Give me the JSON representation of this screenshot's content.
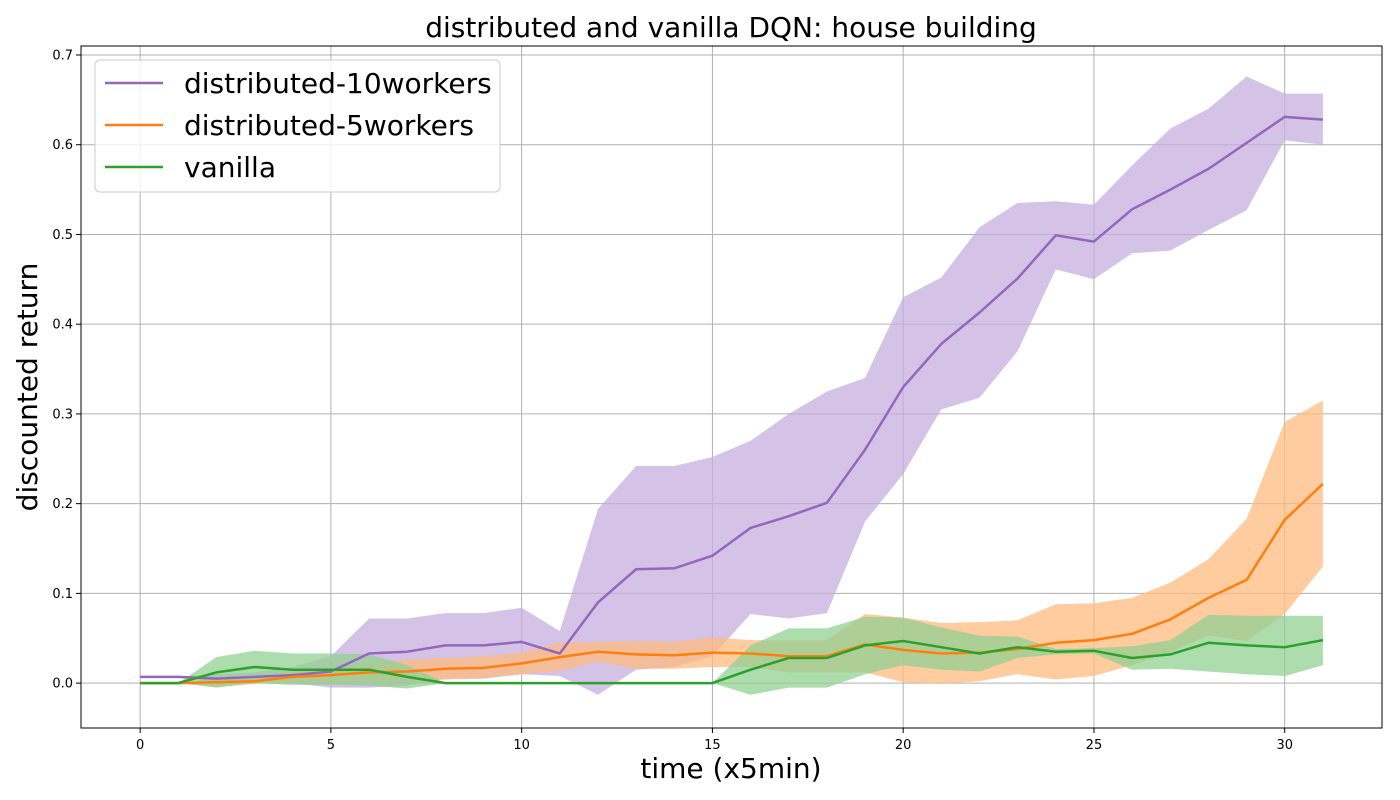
{
  "chart_data": {
    "type": "line",
    "title": "distributed and vanilla DQN: house building",
    "xlabel": "time (x5min)",
    "ylabel": "discounted return",
    "xlim": [
      -1.55,
      32.55
    ],
    "ylim": [
      -0.05,
      0.71
    ],
    "xticks": [
      0,
      5,
      10,
      15,
      20,
      25,
      30
    ],
    "yticks": [
      0.0,
      0.1,
      0.2,
      0.3,
      0.4,
      0.5,
      0.6,
      0.7
    ],
    "xtick_labels": [
      "0",
      "5",
      "10",
      "15",
      "20",
      "25",
      "30"
    ],
    "ytick_labels": [
      "0.0",
      "0.1",
      "0.2",
      "0.3",
      "0.4",
      "0.5",
      "0.6",
      "0.7"
    ],
    "grid": true,
    "legend_position": "top-left",
    "x": [
      0,
      1,
      2,
      3,
      4,
      5,
      6,
      7,
      8,
      9,
      10,
      11,
      12,
      13,
      14,
      15,
      16,
      17,
      18,
      19,
      20,
      21,
      22,
      23,
      24,
      25,
      26,
      27,
      28,
      29,
      30,
      31
    ],
    "series": [
      {
        "name": "distributed-10workers",
        "color": "#9467bd",
        "band_color": "#c5afdd",
        "values": [
          0.007,
          0.007,
          0.005,
          0.007,
          0.009,
          0.013,
          0.033,
          0.035,
          0.042,
          0.042,
          0.046,
          0.033,
          0.09,
          0.127,
          0.128,
          0.142,
          0.173,
          0.186,
          0.201,
          0.26,
          0.33,
          0.378,
          0.413,
          0.451,
          0.499,
          0.492,
          0.528,
          0.55,
          0.573,
          0.602,
          0.631,
          0.628
        ],
        "lower": [
          0.007,
          0.007,
          0.0,
          0.002,
          0.0,
          -0.005,
          -0.005,
          -0.003,
          0.005,
          0.005,
          0.01,
          0.008,
          -0.013,
          0.015,
          0.018,
          0.03,
          0.077,
          0.072,
          0.078,
          0.18,
          0.233,
          0.305,
          0.318,
          0.37,
          0.461,
          0.45,
          0.479,
          0.482,
          0.505,
          0.527,
          0.605,
          0.6
        ],
        "upper": [
          0.007,
          0.007,
          0.01,
          0.012,
          0.018,
          0.03,
          0.072,
          0.072,
          0.078,
          0.078,
          0.084,
          0.058,
          0.194,
          0.242,
          0.242,
          0.252,
          0.27,
          0.3,
          0.325,
          0.34,
          0.43,
          0.452,
          0.508,
          0.535,
          0.537,
          0.533,
          0.577,
          0.618,
          0.64,
          0.676,
          0.657,
          0.657
        ]
      },
      {
        "name": "distributed-5workers",
        "color": "#ff7f0e",
        "band_color": "#ffbb80",
        "values": [
          0.0,
          0.0,
          0.001,
          0.002,
          0.007,
          0.009,
          0.012,
          0.013,
          0.016,
          0.017,
          0.022,
          0.029,
          0.035,
          0.032,
          0.031,
          0.034,
          0.033,
          0.03,
          0.03,
          0.043,
          0.037,
          0.033,
          0.034,
          0.038,
          0.045,
          0.048,
          0.055,
          0.071,
          0.095,
          0.115,
          0.182,
          0.222
        ],
        "lower": [
          0.0,
          0.0,
          -0.004,
          -0.001,
          0.001,
          0.002,
          0.002,
          0.001,
          0.004,
          0.005,
          0.01,
          0.014,
          0.024,
          0.016,
          0.016,
          0.018,
          0.018,
          0.012,
          0.012,
          0.012,
          0.001,
          -0.001,
          0.002,
          0.01,
          0.004,
          0.008,
          0.02,
          0.035,
          0.053,
          0.047,
          0.077,
          0.13
        ],
        "upper": [
          0.0,
          0.0,
          0.005,
          0.005,
          0.013,
          0.016,
          0.022,
          0.026,
          0.028,
          0.03,
          0.034,
          0.045,
          0.046,
          0.047,
          0.046,
          0.051,
          0.048,
          0.048,
          0.048,
          0.077,
          0.073,
          0.067,
          0.068,
          0.07,
          0.088,
          0.089,
          0.095,
          0.112,
          0.138,
          0.183,
          0.291,
          0.315
        ]
      },
      {
        "name": "vanilla",
        "color": "#2ca02c",
        "band_color": "#92d092",
        "values": [
          0.0,
          0.0,
          0.012,
          0.018,
          0.015,
          0.015,
          0.015,
          0.007,
          0.0,
          0.0,
          0.0,
          0.0,
          0.0,
          0.0,
          0.0,
          0.0,
          0.015,
          0.028,
          0.028,
          0.042,
          0.047,
          0.04,
          0.033,
          0.04,
          0.035,
          0.036,
          0.028,
          0.032,
          0.045,
          0.042,
          0.04,
          0.048
        ],
        "lower": [
          0.0,
          0.0,
          -0.005,
          0.0,
          -0.002,
          -0.002,
          -0.003,
          -0.006,
          0.0,
          0.0,
          0.0,
          0.0,
          0.0,
          0.0,
          0.0,
          0.0,
          -0.013,
          -0.005,
          -0.005,
          0.01,
          0.02,
          0.015,
          0.013,
          0.028,
          0.032,
          0.033,
          0.015,
          0.016,
          0.013,
          0.01,
          0.008,
          0.02
        ],
        "upper": [
          0.0,
          0.0,
          0.029,
          0.036,
          0.033,
          0.033,
          0.032,
          0.02,
          0.0,
          0.0,
          0.0,
          0.0,
          0.0,
          0.0,
          0.0,
          0.0,
          0.042,
          0.061,
          0.061,
          0.074,
          0.073,
          0.062,
          0.053,
          0.052,
          0.038,
          0.039,
          0.041,
          0.048,
          0.076,
          0.075,
          0.075,
          0.075
        ]
      }
    ]
  }
}
